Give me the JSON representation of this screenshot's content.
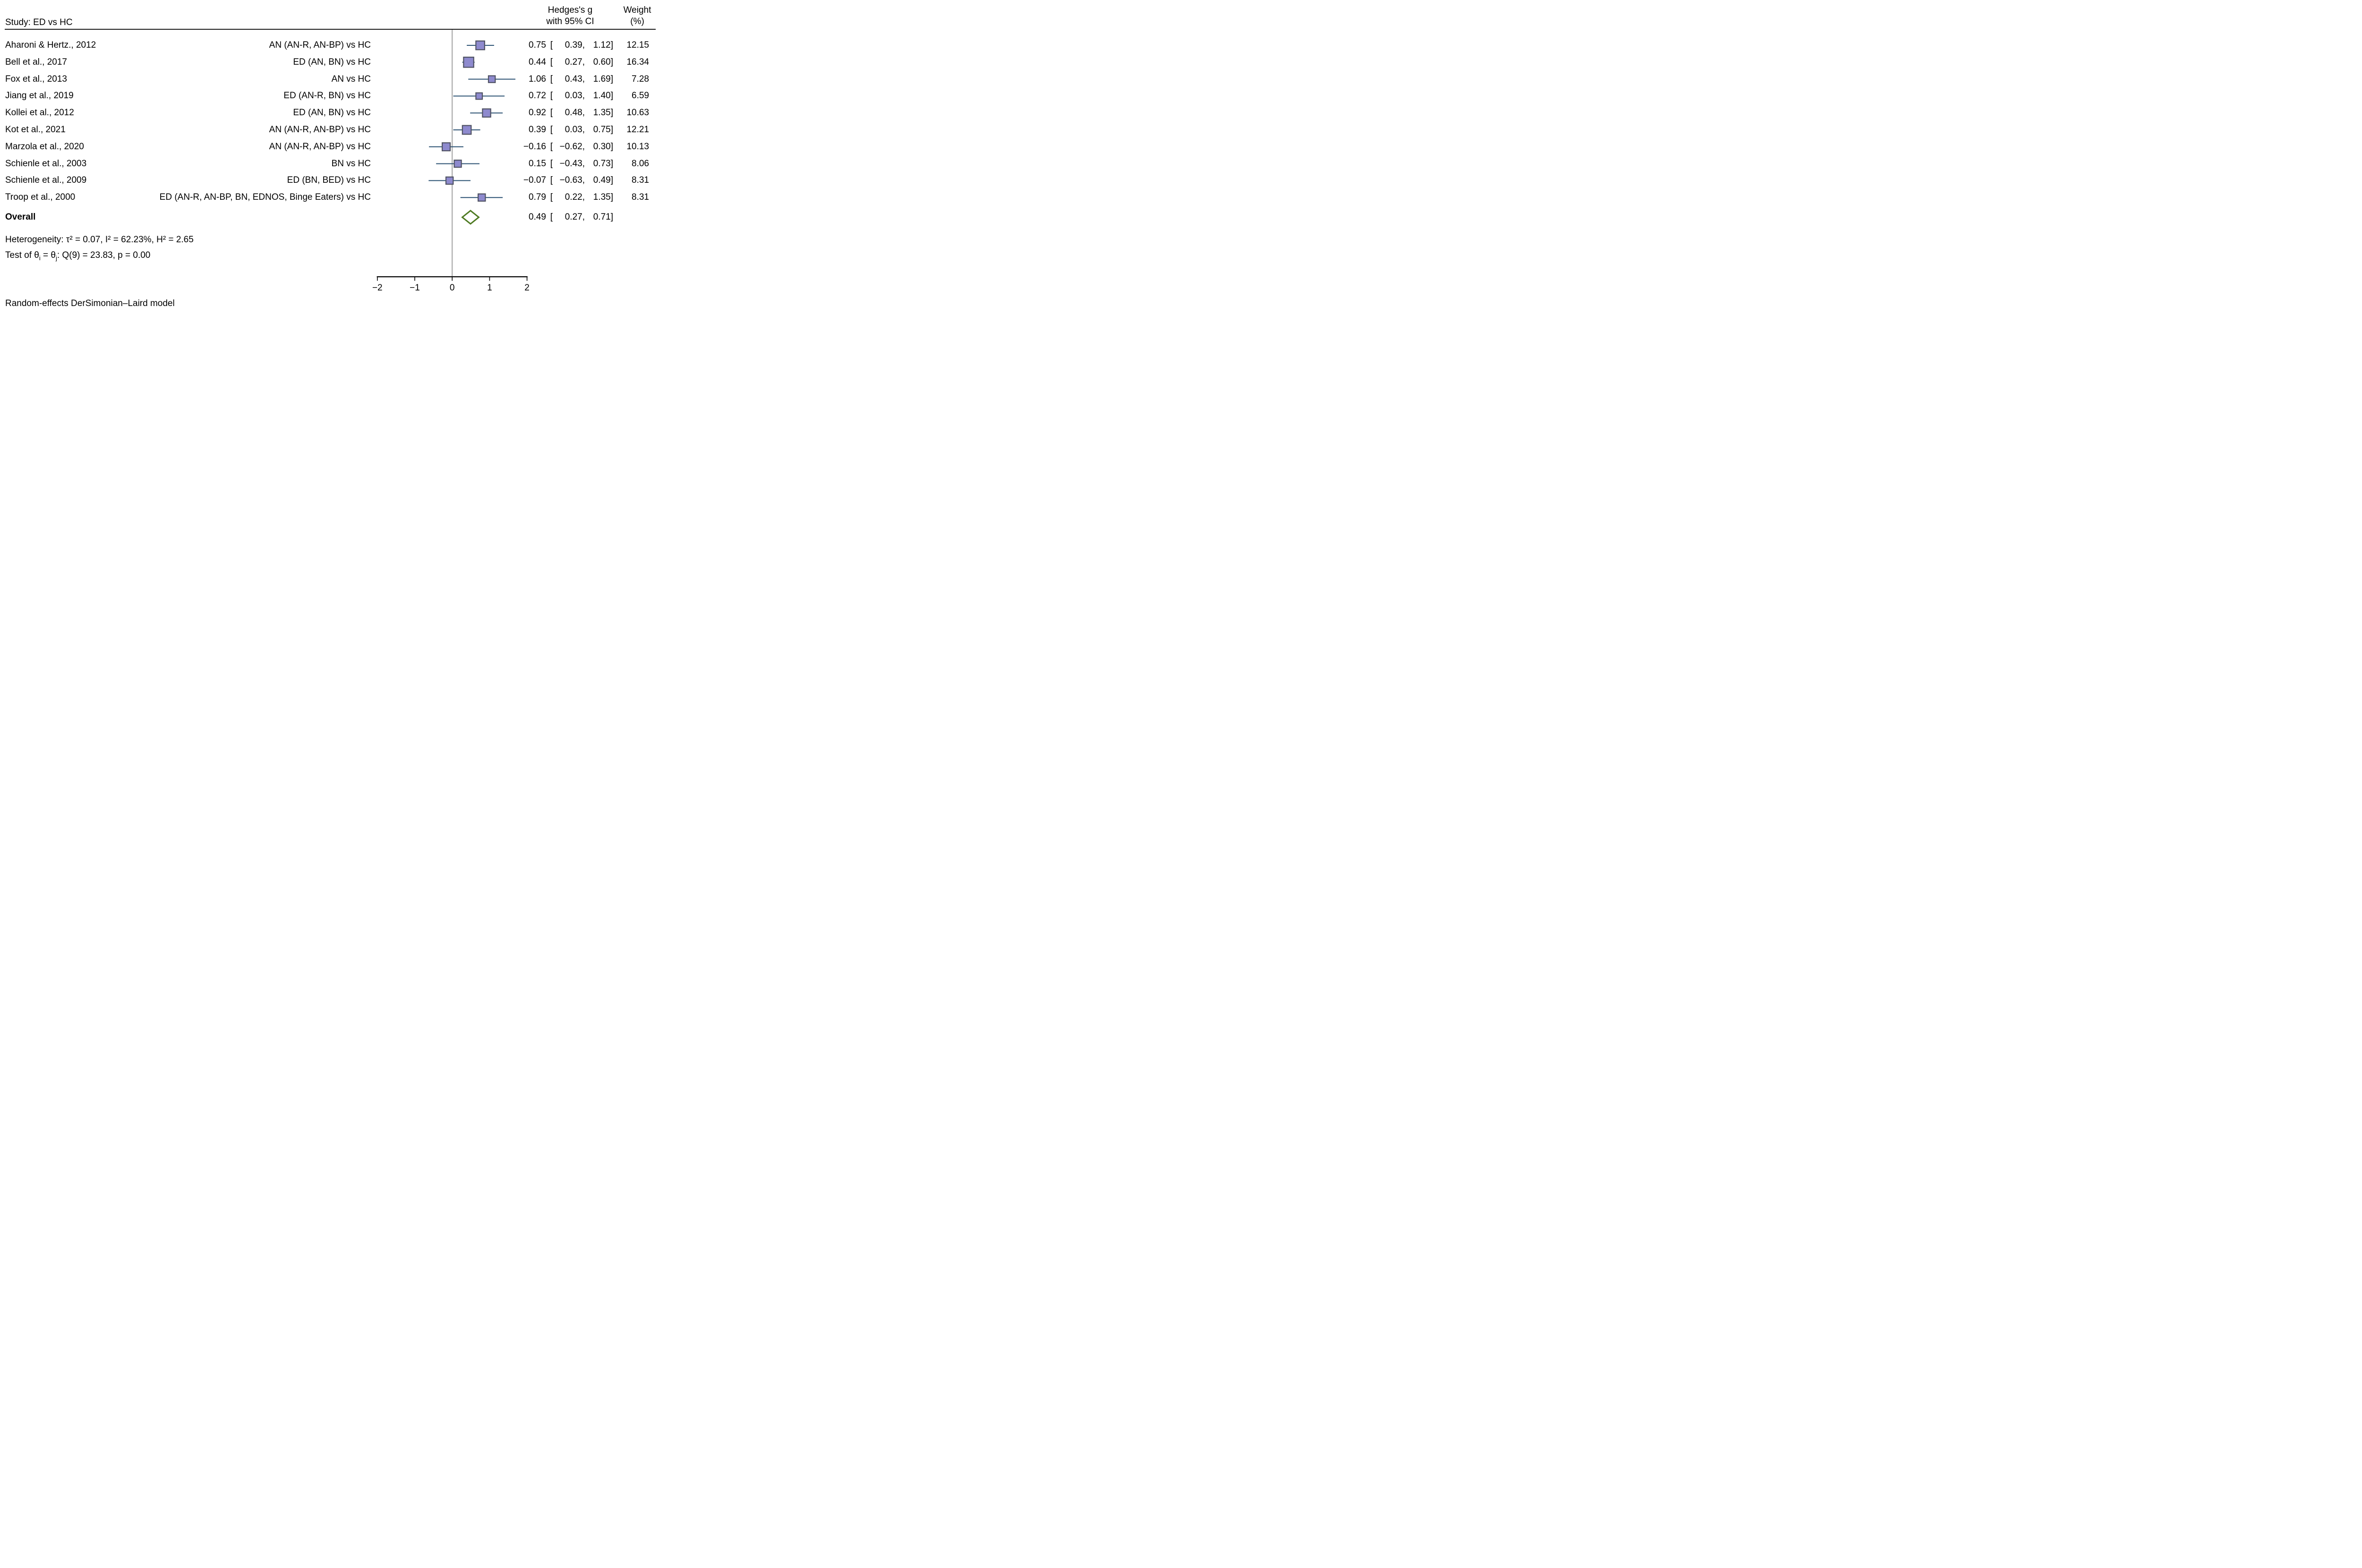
{
  "figure": {
    "study_header": "Study: ED vs HC",
    "effect_header_line1": "Hedges's g",
    "effect_header_line2": "with 95% CI",
    "weight_header_line1": "Weight",
    "weight_header_line2": "(%)"
  },
  "chart_data": {
    "type": "forest",
    "title": "Study: ED vs HC",
    "effect_measure": "Hedges's g",
    "x_axis": {
      "range": [
        -2,
        2
      ],
      "ticks": [
        -2,
        -1,
        0,
        1,
        2
      ],
      "tick_labels": [
        "−2",
        "−1",
        "0",
        "1",
        "2"
      ],
      "reference_line": 0
    },
    "studies": [
      {
        "name": "Aharoni & Hertz., 2012",
        "comparison": "AN (AN-R, AN-BP) vs HC",
        "g": 0.75,
        "ci_low": 0.39,
        "ci_high": 1.12,
        "weight": 12.15
      },
      {
        "name": "Bell et al., 2017",
        "comparison": "ED (AN, BN) vs HC",
        "g": 0.44,
        "ci_low": 0.27,
        "ci_high": 0.6,
        "weight": 16.34
      },
      {
        "name": "Fox et al., 2013",
        "comparison": "AN vs HC",
        "g": 1.06,
        "ci_low": 0.43,
        "ci_high": 1.69,
        "weight": 7.28
      },
      {
        "name": "Jiang et al., 2019",
        "comparison": "ED (AN-R, BN) vs HC",
        "g": 0.72,
        "ci_low": 0.03,
        "ci_high": 1.4,
        "weight": 6.59
      },
      {
        "name": "Kollei et al., 2012",
        "comparison": "ED (AN, BN) vs HC",
        "g": 0.92,
        "ci_low": 0.48,
        "ci_high": 1.35,
        "weight": 10.63
      },
      {
        "name": "Kot et al., 2021",
        "comparison": "AN (AN-R, AN-BP) vs HC",
        "g": 0.39,
        "ci_low": 0.03,
        "ci_high": 0.75,
        "weight": 12.21
      },
      {
        "name": "Marzola et al., 2020",
        "comparison": "AN (AN-R, AN-BP) vs HC",
        "g": -0.16,
        "ci_low": -0.62,
        "ci_high": 0.3,
        "weight": 10.13
      },
      {
        "name": "Schienle et al., 2003",
        "comparison": "BN vs HC",
        "g": 0.15,
        "ci_low": -0.43,
        "ci_high": 0.73,
        "weight": 8.06
      },
      {
        "name": "Schienle et al., 2009",
        "comparison": "ED (BN, BED) vs HC",
        "g": -0.07,
        "ci_low": -0.63,
        "ci_high": 0.49,
        "weight": 8.31
      },
      {
        "name": "Troop et al., 2000",
        "comparison": "ED (AN-R, AN-BP, BN, EDNOS, Binge Eaters) vs HC",
        "g": 0.79,
        "ci_low": 0.22,
        "ci_high": 1.35,
        "weight": 8.31
      }
    ],
    "overall": {
      "label": "Overall",
      "g": 0.49,
      "ci_low": 0.27,
      "ci_high": 0.71
    },
    "heterogeneity": "Heterogeneity: τ² = 0.07, I² = 62.23%, H² = 2.65",
    "homogeneity_test": {
      "pre": "Test of θ",
      "sub_i": "i",
      "mid": " = θ",
      "sub_j": "j",
      "post": ": Q(9) = 23.83, p = 0.00"
    },
    "note": "Random-effects DerSimonian–Laird model",
    "grid": false,
    "legend_position": "none"
  },
  "colors": {
    "square_fill": "#8e8ace",
    "square_border": "#4f5263",
    "ci_line": "#2f5475",
    "reference_line": "#b4b4b4",
    "diamond_stroke": "#4e7a22",
    "diamond_fill": "#ffffff",
    "axis": "#000000",
    "rule": "#1f1f1f",
    "text": "#000000"
  }
}
